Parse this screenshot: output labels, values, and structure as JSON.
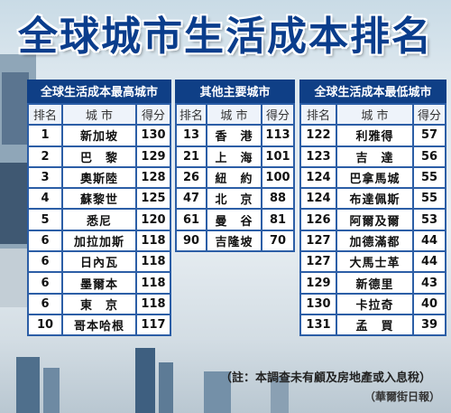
{
  "title": "全球城市生活成本排名",
  "columns": {
    "rank": "排名",
    "city": "城 市",
    "score": "得分"
  },
  "sections": [
    {
      "id": "high",
      "header": "全球生活成本最高城市",
      "rows": [
        {
          "rank": "1",
          "city": "新加坡",
          "score": "130"
        },
        {
          "rank": "2",
          "city": "巴　黎",
          "score": "129"
        },
        {
          "rank": "3",
          "city": "奧斯陸",
          "score": "128"
        },
        {
          "rank": "4",
          "city": "蘇黎世",
          "score": "125"
        },
        {
          "rank": "5",
          "city": "悉尼",
          "score": "120"
        },
        {
          "rank": "6",
          "city": "加拉加斯",
          "score": "118"
        },
        {
          "rank": "6",
          "city": "日內瓦",
          "score": "118"
        },
        {
          "rank": "6",
          "city": "墨爾本",
          "score": "118"
        },
        {
          "rank": "6",
          "city": "東　京",
          "score": "118"
        },
        {
          "rank": "10",
          "city": "哥本哈根",
          "score": "117"
        }
      ]
    },
    {
      "id": "mid",
      "header": "其他主要城市",
      "rows": [
        {
          "rank": "13",
          "city": "香　港",
          "score": "113"
        },
        {
          "rank": "21",
          "city": "上　海",
          "score": "101"
        },
        {
          "rank": "26",
          "city": "紐　約",
          "score": "100"
        },
        {
          "rank": "47",
          "city": "北　京",
          "score": "88"
        },
        {
          "rank": "61",
          "city": "曼　谷",
          "score": "81"
        },
        {
          "rank": "90",
          "city": "吉隆坡",
          "score": "70"
        }
      ]
    },
    {
      "id": "low",
      "header": "全球生活成本最低城市",
      "rows": [
        {
          "rank": "122",
          "city": "利雅得",
          "score": "57"
        },
        {
          "rank": "123",
          "city": "吉　達",
          "score": "56"
        },
        {
          "rank": "124",
          "city": "巴拿馬城",
          "score": "55"
        },
        {
          "rank": "124",
          "city": "布達佩斯",
          "score": "55"
        },
        {
          "rank": "126",
          "city": "阿爾及爾",
          "score": "53"
        },
        {
          "rank": "127",
          "city": "加德滿都",
          "score": "44"
        },
        {
          "rank": "127",
          "city": "大馬士革",
          "score": "44"
        },
        {
          "rank": "129",
          "city": "新德里",
          "score": "43"
        },
        {
          "rank": "130",
          "city": "卡拉奇",
          "score": "40"
        },
        {
          "rank": "131",
          "city": "孟　買",
          "score": "39"
        }
      ]
    }
  ],
  "note": "（註：本調查未有顧及房地產或入息稅）",
  "source": "（華爾街日報）",
  "colors": {
    "header_bg": "#0f3f86",
    "border": "#2c5ea6",
    "title": "#0a3d8c"
  }
}
